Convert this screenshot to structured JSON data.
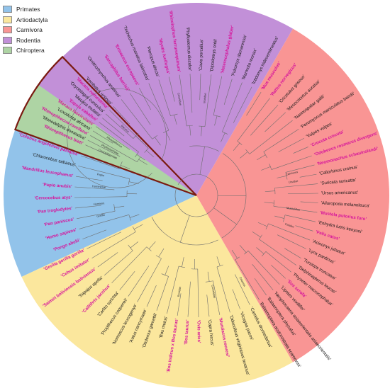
{
  "legend": [
    {
      "label": "Primates",
      "color": "#92c3ea"
    },
    {
      "label": "Artiodactyla",
      "color": "#fbe79d"
    },
    {
      "label": "Carnivora",
      "color": "#f99594"
    },
    {
      "label": "Rodentia",
      "color": "#c290d8"
    },
    {
      "label": "Chiroptera",
      "color": "#aed4a4"
    }
  ],
  "highlight_color": "#d6149b",
  "sectors": [
    {
      "group": "Primates",
      "start": 155,
      "end": 258,
      "color": "#92c3ea"
    },
    {
      "group": "Artiodactyla",
      "start": 60,
      "end": 155,
      "color": "#fbe79d"
    },
    {
      "group": "Carnivora",
      "start": -60,
      "end": 60,
      "color": "#f99594"
    },
    {
      "group": "Rodentia",
      "start": -145,
      "end": -60,
      "color": "#c290d8"
    },
    {
      "group": "Chiroptera",
      "start": -160,
      "end": -145,
      "color": "#aed4a4"
    }
  ],
  "highlight_box": {
    "start": 200,
    "end": 226,
    "color": "#7a1a10"
  },
  "clade_labels": [
    {
      "text": "Carnivora",
      "angle": -13
    },
    {
      "text": "Ursidae",
      "angle": -8
    },
    {
      "text": "Mustelidae",
      "angle": 8
    },
    {
      "text": "Felidae",
      "angle": 18
    },
    {
      "text": "Macaca",
      "angle": 223
    },
    {
      "text": "Rhinopithecus",
      "angle": 213
    },
    {
      "text": "Cercopithecidae",
      "angle": 205
    },
    {
      "text": "Papio",
      "angle": 192
    },
    {
      "text": "Hominidae",
      "angle": 185
    },
    {
      "text": "Hominini",
      "angle": 175
    },
    {
      "text": "Gorilla",
      "angle": 168
    },
    {
      "text": "Camelidae",
      "angle": 80
    },
    {
      "text": "Bovidae",
      "angle": 100
    },
    {
      "text": "Cetacea",
      "angle": 62
    },
    {
      "text": "Cricetidae",
      "angle": -100
    },
    {
      "text": "Muridae",
      "angle": -85
    },
    {
      "text": "Phyllostomidae",
      "angle": -152
    }
  ],
  "leaves": [
    {
      "name": "'Macaca nemestrina'",
      "angle": 224.5,
      "hl": true
    },
    {
      "name": "'Macaca mulatta'",
      "angle": 219.5,
      "hl": false
    },
    {
      "name": "'Macaca fascicularis'",
      "angle": 214.5,
      "hl": true
    },
    {
      "name": "'Rhinopithecus roxellana'",
      "angle": 209.5,
      "hl": true
    },
    {
      "name": "'Rhinopithecus bieti'",
      "angle": 204.5,
      "hl": true
    },
    {
      "name": "'Colobus angolensis palliatus'",
      "angle": 199,
      "hl": true
    },
    {
      "name": "'Chlorocebus sabaeus'",
      "angle": 194,
      "hl": false
    },
    {
      "name": "'Mandrillus leucophaeus'",
      "angle": 189,
      "hl": true
    },
    {
      "name": "'Papio anubis'",
      "angle": 184,
      "hl": true
    },
    {
      "name": "'Cercocebus atys'",
      "angle": 179,
      "hl": true
    },
    {
      "name": "'Pan troglodytes'",
      "angle": 174,
      "hl": true
    },
    {
      "name": "'Pan paniscus'",
      "angle": 169,
      "hl": true
    },
    {
      "name": "'Homo sapiens'",
      "angle": 164,
      "hl": true
    },
    {
      "name": "'Pongo abelii'",
      "angle": 159,
      "hl": true
    },
    {
      "name": "'Gorilla gorilla gorilla'",
      "angle": 154,
      "hl": true
    },
    {
      "name": "'Cebus imitator'",
      "angle": 149,
      "hl": true
    },
    {
      "name": "'Saimiri boliviensis boliviensis'",
      "angle": 144,
      "hl": true
    },
    {
      "name": "'Sapajus apella'",
      "angle": 139,
      "hl": false
    },
    {
      "name": "'Callithrix jacchus'",
      "angle": 134,
      "hl": true
    },
    {
      "name": "'Carlito syrichta'",
      "angle": 129,
      "hl": false
    },
    {
      "name": "'Propithecus coquereli'",
      "angle": 124,
      "hl": false
    },
    {
      "name": "'Nomascus leucogenys'",
      "angle": 119,
      "hl": false
    },
    {
      "name": "'Aotus nancymaae'",
      "angle": 114,
      "hl": false
    },
    {
      "name": "'Otolemur garnettii'",
      "angle": 109,
      "hl": false
    },
    {
      "name": "'Bos mutus'",
      "angle": 104,
      "hl": false
    },
    {
      "name": "'Bos indicus x Bos taurus'",
      "angle": 99,
      "hl": true
    },
    {
      "name": "'Bos taurus'",
      "angle": 94,
      "hl": true
    },
    {
      "name": "'Ovis aries'",
      "angle": 89,
      "hl": true
    },
    {
      "name": "'Capra hircus'",
      "angle": 84,
      "hl": false
    },
    {
      "name": "'Muntiacus reevesi'",
      "angle": 79,
      "hl": true
    },
    {
      "name": "'Odocoileus virginianus texanus'",
      "angle": 74,
      "hl": false
    },
    {
      "name": "'Vicugna pacos'",
      "angle": 69,
      "hl": false
    },
    {
      "name": "'Camelus dromedarius'",
      "angle": 64,
      "hl": false
    },
    {
      "name": "'Balaenoptera acutorostrata scammoni'",
      "angle": 59,
      "hl": false
    },
    {
      "name": "'Balaenoptera physalus'",
      "angle": 55,
      "hl": false
    },
    {
      "name": "'Neophocaena asiaeorientalis asiaeorientalis'",
      "angle": 51,
      "hl": false
    },
    {
      "name": "'Lipotes vexillifer'",
      "angle": 47,
      "hl": false
    },
    {
      "name": "'Sus scrofa'",
      "angle": 43,
      "hl": true
    },
    {
      "name": "'Physeter macrocephalus'",
      "angle": 39,
      "hl": false
    },
    {
      "name": "'Delphinapterus leucas'",
      "angle": 35,
      "hl": false
    },
    {
      "name": "'Tursiops truncatus'",
      "angle": 31,
      "hl": false
    },
    {
      "name": "'Lynx pardinus'",
      "angle": 26,
      "hl": false
    },
    {
      "name": "'Acinonyx jubatus'",
      "angle": 21.5,
      "hl": false
    },
    {
      "name": "'Felis catus'",
      "angle": 17,
      "hl": true
    },
    {
      "name": "'Enhydra lutris kenyoni'",
      "angle": 12.5,
      "hl": false
    },
    {
      "name": "'Mustela putorius furo'",
      "angle": 8,
      "hl": true
    },
    {
      "name": "'Ailuropoda melanoleuca'",
      "angle": 3.5,
      "hl": false
    },
    {
      "name": "'Ursus americanus'",
      "angle": -1,
      "hl": false
    },
    {
      "name": "'Suricata suricatta'",
      "angle": -5.5,
      "hl": false
    },
    {
      "name": "'Callorhinus ursinus'",
      "angle": -10,
      "hl": false
    },
    {
      "name": "'Neomonachus schauinslandi'",
      "angle": -14.5,
      "hl": true
    },
    {
      "name": "'Odobenus rosmarus divergens'",
      "angle": -19,
      "hl": true
    },
    {
      "name": "'Crocuta crocuta'",
      "angle": -23.5,
      "hl": true
    },
    {
      "name": "'Vulpes vulpes'",
      "angle": -28,
      "hl": false
    },
    {
      "name": "'Peromyscus maniculatus bairdii'",
      "angle": -33,
      "hl": false
    },
    {
      "name": "'Nannospalax galili'",
      "angle": -38,
      "hl": false
    },
    {
      "name": "'Mesocricetus auratus'",
      "angle": -43,
      "hl": false
    },
    {
      "name": "'Cricetulus griseus'",
      "angle": -48,
      "hl": false
    },
    {
      "name": "'Rattus norvegicus'",
      "angle": -53,
      "hl": true
    },
    {
      "name": "'Mus musculus'",
      "angle": -58,
      "hl": true
    },
    {
      "name": "'Ictidomys tridecemlineatus'",
      "angle": -63,
      "hl": false
    },
    {
      "name": "'Marmota monax'",
      "angle": -68,
      "hl": false
    },
    {
      "name": "'Fukomys damarensis'",
      "angle": -73,
      "hl": false
    },
    {
      "name": "'Heterocephalus glaber'",
      "angle": -78,
      "hl": true
    },
    {
      "name": "'Dipodomys ordii'",
      "angle": -83,
      "hl": false
    },
    {
      "name": "'Cavia porcellus'",
      "angle": -88,
      "hl": false
    },
    {
      "name": "'Phyllostomus discolor'",
      "angle": -93,
      "hl": false
    },
    {
      "name": "'Rhinolophus ferrumequinum'",
      "angle": -98,
      "hl": true
    },
    {
      "name": "'Myotis lucifugus'",
      "angle": -103,
      "hl": true
    },
    {
      "name": "'Pteropus alecto'",
      "angle": -108,
      "hl": false
    },
    {
      "name": "'Trichechus manatus latirostris'",
      "angle": -113,
      "hl": false
    },
    {
      "name": "'Erinaceus europaeus'",
      "angle": -118,
      "hl": true
    },
    {
      "name": "'Sarcophilus harrisii'",
      "angle": -123,
      "hl": true
    },
    {
      "name": "'Ornithorhynchus anatinus'",
      "angle": -128,
      "hl": false
    },
    {
      "name": "'Vombatus ursinus'",
      "angle": -133,
      "hl": false
    },
    {
      "name": "'Oryctolagus cuniculus'",
      "angle": -138,
      "hl": false
    },
    {
      "name": "'Equus caballus'",
      "angle": -143,
      "hl": true
    },
    {
      "name": "'Loxodonta africana'",
      "angle": -148,
      "hl": false
    },
    {
      "name": "'Monodelphis domestica'",
      "angle": -153,
      "hl": false
    }
  ]
}
